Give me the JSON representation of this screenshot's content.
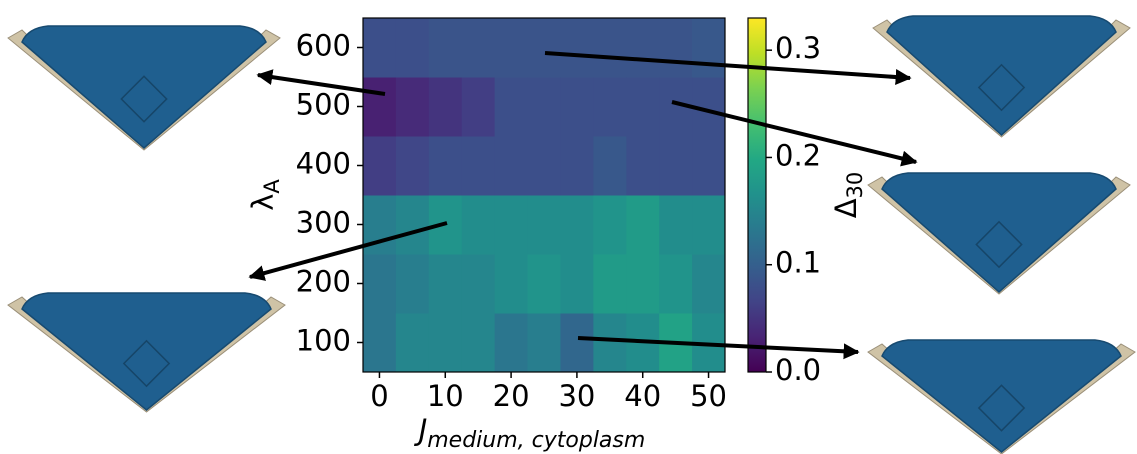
{
  "chart_data": {
    "type": "heatmap",
    "colormap": "viridis",
    "xlabel": {
      "main": "J",
      "sub": "medium, cytoplasm"
    },
    "ylabel": {
      "main": "λ",
      "sub": "A"
    },
    "colorbar_label": {
      "main": "Δ",
      "sub": "30"
    },
    "x": [
      0,
      5,
      10,
      15,
      20,
      25,
      30,
      35,
      40,
      45,
      50
    ],
    "y": [
      100,
      200,
      300,
      400,
      500,
      600
    ],
    "values": [
      [
        0.13,
        0.15,
        0.15,
        0.15,
        0.13,
        0.14,
        0.11,
        0.15,
        0.16,
        0.19,
        0.16
      ],
      [
        0.13,
        0.14,
        0.15,
        0.15,
        0.16,
        0.17,
        0.16,
        0.18,
        0.18,
        0.17,
        0.15
      ],
      [
        0.14,
        0.15,
        0.17,
        0.16,
        0.16,
        0.16,
        0.16,
        0.17,
        0.18,
        0.16,
        0.16
      ],
      [
        0.06,
        0.07,
        0.08,
        0.08,
        0.08,
        0.08,
        0.08,
        0.09,
        0.08,
        0.08,
        0.08
      ],
      [
        0.03,
        0.04,
        0.05,
        0.06,
        0.08,
        0.08,
        0.08,
        0.08,
        0.08,
        0.08,
        0.08
      ],
      [
        0.08,
        0.08,
        0.085,
        0.085,
        0.085,
        0.085,
        0.085,
        0.085,
        0.085,
        0.085,
        0.09
      ]
    ],
    "xlim": [
      -2.5,
      52.5
    ],
    "ylim": [
      50,
      650
    ],
    "xticks": [
      0,
      10,
      20,
      30,
      40,
      50
    ],
    "yticks": [
      100,
      200,
      300,
      400,
      500,
      600
    ],
    "clim": [
      0,
      0.33
    ],
    "cticks": [
      {
        "value": 0,
        "label": "0.0"
      },
      0.1,
      0.2,
      0.3
    ]
  }
}
